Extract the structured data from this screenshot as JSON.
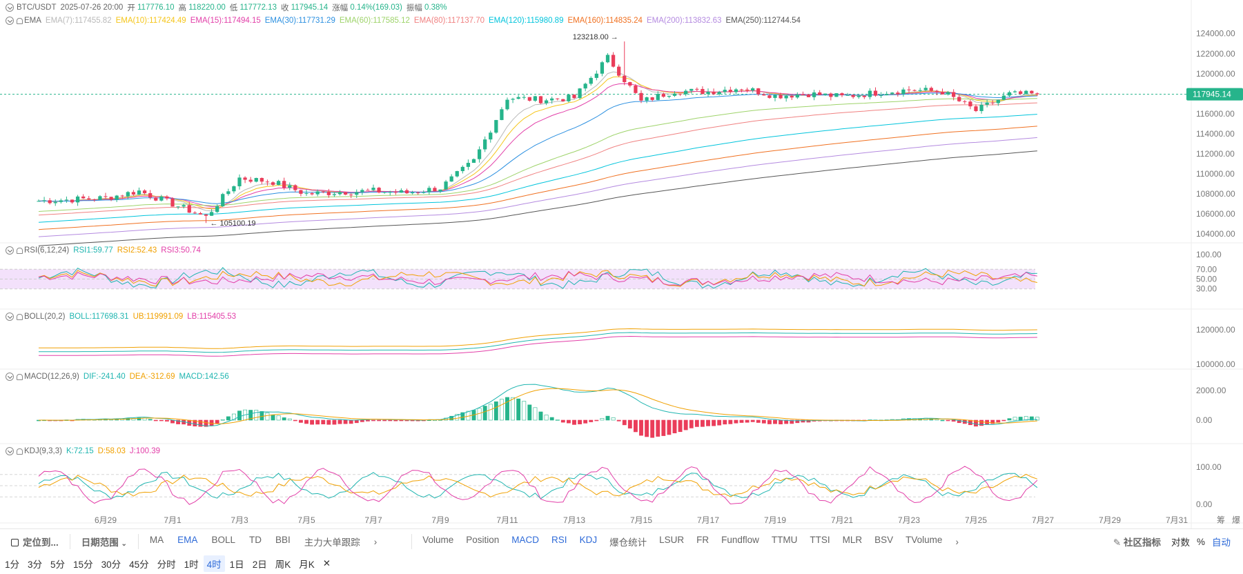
{
  "header": {
    "symbol": "BTC/USDT",
    "datetime": "2025-07-26 20:00",
    "open_label": "开",
    "open": "117776.10",
    "high_label": "高",
    "high": "118220.00",
    "low_label": "低",
    "low": "117772.13",
    "close_label": "收",
    "close": "117945.14",
    "change_label": "涨幅",
    "change": "0.14%(169.03)",
    "amp_label": "振幅",
    "amp": "0.38%"
  },
  "ema": {
    "title": "EMA",
    "items": [
      {
        "label": "EMA(7):117455.82",
        "color": "#b9b9b9"
      },
      {
        "label": "EMA(10):117424.49",
        "color": "#f5c518"
      },
      {
        "label": "EMA(15):117494.15",
        "color": "#e23ea8"
      },
      {
        "label": "EMA(30):117731.29",
        "color": "#2a8fe0"
      },
      {
        "label": "EMA(60):117585.12",
        "color": "#9ed36a"
      },
      {
        "label": "EMA(80):117137.70",
        "color": "#f08080"
      },
      {
        "label": "EMA(120):115980.89",
        "color": "#00c4dc"
      },
      {
        "label": "EMA(160):114835.24",
        "color": "#f07020"
      },
      {
        "label": "EMA(200):113832.63",
        "color": "#b48ae0"
      },
      {
        "label": "EMA(250):112744.54",
        "color": "#555555"
      }
    ]
  },
  "rsi": {
    "title": "RSI(6,12,24)",
    "items": [
      {
        "label": "RSI1:59.77",
        "color": "#1fb5b0"
      },
      {
        "label": "RSI2:52.43",
        "color": "#f0a000"
      },
      {
        "label": "RSI3:50.74",
        "color": "#e23ea8"
      }
    ]
  },
  "boll": {
    "title": "BOLL(20,2)",
    "items": [
      {
        "label": "BOLL:117698.31",
        "color": "#1fb5b0"
      },
      {
        "label": "UB:119991.09",
        "color": "#f0a000"
      },
      {
        "label": "LB:115405.53",
        "color": "#e23ea8"
      }
    ]
  },
  "macd": {
    "title": "MACD(12,26,9)",
    "items": [
      {
        "label": "DIF:-241.40",
        "color": "#1fb5b0"
      },
      {
        "label": "DEA:-312.69",
        "color": "#f0a000"
      },
      {
        "label": "MACD:142.56",
        "color": "#1fb5b0"
      }
    ]
  },
  "kdj": {
    "title": "KDJ(9,3,3)",
    "items": [
      {
        "label": "K:72.15",
        "color": "#1fb5b0"
      },
      {
        "label": "D:58.03",
        "color": "#f0a000"
      },
      {
        "label": "J:100.39",
        "color": "#e23ea8"
      }
    ]
  },
  "price_axis": {
    "ticks": [
      "124000.00",
      "122000.00",
      "120000.00",
      "118000.00",
      "116000.00",
      "114000.00",
      "112000.00",
      "110000.00",
      "108000.00",
      "106000.00",
      "104000.00"
    ],
    "current": "117945.14"
  },
  "rsi_axis": [
    "100.00",
    "70.00",
    "50.00",
    "30.00"
  ],
  "boll_axis": [
    "120000.00",
    "100000.00"
  ],
  "macd_axis": [
    "2000.00",
    "0.00"
  ],
  "kdj_axis": [
    "100.00",
    "0.00"
  ],
  "annotations": {
    "high": "123218.00",
    "low": "105100.19"
  },
  "x_axis": {
    "ticks": [
      "6月29",
      "7月1",
      "7月3",
      "7月5",
      "7月7",
      "7月9",
      "7月11",
      "7月13",
      "7月15",
      "7月17",
      "7月19",
      "7月21",
      "7月23",
      "7月25",
      "7月27",
      "7月29",
      "7月31"
    ],
    "right": [
      "筹",
      "爆"
    ]
  },
  "toolbar": {
    "locate": "定位到...",
    "date_range": "日期范围",
    "main_indicators": [
      "MA",
      "EMA",
      "BOLL",
      "TD",
      "BBI",
      "主力大单跟踪"
    ],
    "main_selected": "EMA",
    "sub_indicators": [
      "Volume",
      "Position",
      "MACD",
      "RSI",
      "KDJ",
      "爆仓统计",
      "LSUR",
      "FR",
      "Fundflow",
      "TTMU",
      "TTSI",
      "MLR",
      "BSV",
      "TVolume"
    ],
    "sub_selected": [
      "MACD",
      "RSI",
      "KDJ"
    ],
    "community": "社区指标",
    "log": "对数",
    "percent": "%",
    "auto": "自动"
  },
  "periods": {
    "items": [
      "1分",
      "3分",
      "5分",
      "15分",
      "30分",
      "45分",
      "分时",
      "1时",
      "4时",
      "1日",
      "2日",
      "周K",
      "月K"
    ],
    "selected": "4时"
  },
  "colors": {
    "up": "#26b48b",
    "down": "#ea3d5a",
    "accent": "#2f6bd8"
  },
  "chart_data": {
    "type": "candlestick",
    "title": "BTC/USDT",
    "interval": "4时",
    "x_range": [
      "2025-06-27",
      "2025-07-31"
    ],
    "close_series_approx": [
      {
        "x": "2025-06-27",
        "y": 107300
      },
      {
        "x": "2025-06-29",
        "y": 107600
      },
      {
        "x": "2025-06-30",
        "y": 108300
      },
      {
        "x": "2025-07-01",
        "y": 107000
      },
      {
        "x": "2025-07-02",
        "y": 105700
      },
      {
        "x": "2025-07-03",
        "y": 109600
      },
      {
        "x": "2025-07-04",
        "y": 109200
      },
      {
        "x": "2025-07-05",
        "y": 108000
      },
      {
        "x": "2025-07-06",
        "y": 108200
      },
      {
        "x": "2025-07-07",
        "y": 108300
      },
      {
        "x": "2025-07-08",
        "y": 108100
      },
      {
        "x": "2025-07-09",
        "y": 108600
      },
      {
        "x": "2025-07-10",
        "y": 111300
      },
      {
        "x": "2025-07-11",
        "y": 117600
      },
      {
        "x": "2025-07-12",
        "y": 117400
      },
      {
        "x": "2025-07-13",
        "y": 117600
      },
      {
        "x": "2025-07-14",
        "y": 121600
      },
      {
        "x": "2025-07-15",
        "y": 117200
      },
      {
        "x": "2025-07-16",
        "y": 118300
      },
      {
        "x": "2025-07-17",
        "y": 118200
      },
      {
        "x": "2025-07-18",
        "y": 118600
      },
      {
        "x": "2025-07-19",
        "y": 117800
      },
      {
        "x": "2025-07-20",
        "y": 118000
      },
      {
        "x": "2025-07-21",
        "y": 117700
      },
      {
        "x": "2025-07-22",
        "y": 118100
      },
      {
        "x": "2025-07-23",
        "y": 118400
      },
      {
        "x": "2025-07-24",
        "y": 118200
      },
      {
        "x": "2025-07-25",
        "y": 116300
      },
      {
        "x": "2025-07-26",
        "y": 117945
      }
    ],
    "ylim": [
      104000,
      124000
    ],
    "last_price": 117945.14,
    "high": 123218.0,
    "low": 105100.19,
    "ema_last": {
      "EMA(7)": 117455.82,
      "EMA(10)": 117424.49,
      "EMA(15)": 117494.15,
      "EMA(30)": 117731.29,
      "EMA(60)": 117585.12,
      "EMA(80)": 117137.7,
      "EMA(120)": 115980.89,
      "EMA(160)": 114835.24,
      "EMA(200)": 113832.63,
      "EMA(250)": 112744.54
    },
    "rsi_last": {
      "RSI1": 59.77,
      "RSI2": 52.43,
      "RSI3": 50.74
    },
    "boll_last": {
      "BOLL": 117698.31,
      "UB": 119991.09,
      "LB": 115405.53
    },
    "macd_last": {
      "DIF": -241.4,
      "DEA": -312.69,
      "MACD": 142.56
    },
    "kdj_last": {
      "K": 72.15,
      "D": 58.03,
      "J": 100.39
    }
  }
}
